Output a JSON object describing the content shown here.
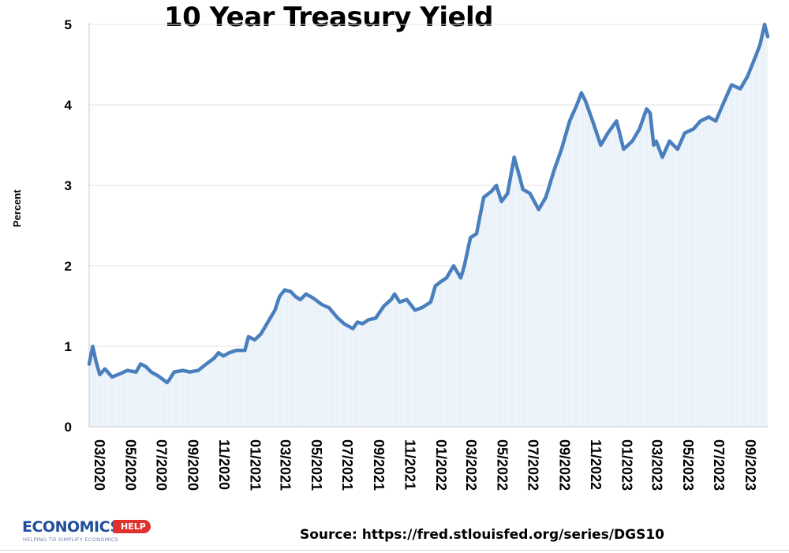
{
  "chart_data": {
    "type": "line",
    "title": "10 Year Treasury Yield",
    "ylabel": "Percent",
    "xlabel": "",
    "ylim": [
      0,
      5
    ],
    "yticks": [
      0,
      1,
      2,
      3,
      4,
      5
    ],
    "grid": "horizontal",
    "x_tick_labels": [
      "03/2020",
      "05/2020",
      "07/2020",
      "09/2020",
      "11/2020",
      "01/2021",
      "03/2021",
      "05/2021",
      "07/2021",
      "09/2021",
      "11/2021",
      "01/2022",
      "03/2022",
      "05/2022",
      "07/2022",
      "09/2022",
      "11/2022",
      "01/2023",
      "03/2023",
      "05/2023",
      "07/2023",
      "09/2023"
    ],
    "series": [
      {
        "color": "#4a7fbd",
        "x": [
          "2020-03-01",
          "2020-03-08",
          "2020-03-15",
          "2020-03-22",
          "2020-04-01",
          "2020-04-15",
          "2020-05-01",
          "2020-05-15",
          "2020-06-01",
          "2020-06-10",
          "2020-06-20",
          "2020-07-01",
          "2020-07-15",
          "2020-08-01",
          "2020-08-05",
          "2020-08-15",
          "2020-09-01",
          "2020-09-15",
          "2020-10-01",
          "2020-10-15",
          "2020-11-01",
          "2020-11-10",
          "2020-11-20",
          "2020-12-01",
          "2020-12-15",
          "2021-01-01",
          "2021-01-08",
          "2021-01-20",
          "2021-02-01",
          "2021-02-15",
          "2021-03-01",
          "2021-03-10",
          "2021-03-20",
          "2021-04-01",
          "2021-04-10",
          "2021-04-20",
          "2021-05-01",
          "2021-05-15",
          "2021-06-01",
          "2021-06-15",
          "2021-07-01",
          "2021-07-15",
          "2021-08-01",
          "2021-08-10",
          "2021-08-20",
          "2021-09-01",
          "2021-09-15",
          "2021-10-01",
          "2021-10-15",
          "2021-10-22",
          "2021-11-01",
          "2021-11-15",
          "2021-11-25",
          "2021-12-01",
          "2021-12-15",
          "2022-01-01",
          "2022-01-10",
          "2022-01-20",
          "2022-02-01",
          "2022-02-15",
          "2022-03-01",
          "2022-03-08",
          "2022-03-20",
          "2022-04-01",
          "2022-04-15",
          "2022-05-01",
          "2022-05-10",
          "2022-05-20",
          "2022-06-01",
          "2022-06-14",
          "2022-06-25",
          "2022-07-01",
          "2022-07-15",
          "2022-08-01",
          "2022-08-15",
          "2022-09-01",
          "2022-09-15",
          "2022-10-01",
          "2022-10-15",
          "2022-10-24",
          "2022-11-01",
          "2022-11-15",
          "2022-12-01",
          "2022-12-15",
          "2023-01-01",
          "2023-01-15",
          "2023-02-01",
          "2023-02-15",
          "2023-03-01",
          "2023-03-08",
          "2023-03-15",
          "2023-03-20",
          "2023-04-01",
          "2023-04-15",
          "2023-05-01",
          "2023-05-15",
          "2023-06-01",
          "2023-06-15",
          "2023-07-01",
          "2023-07-15",
          "2023-08-01",
          "2023-08-15",
          "2023-09-01",
          "2023-09-15",
          "2023-10-01",
          "2023-10-10",
          "2023-10-19",
          "2023-10-25"
        ],
        "y": [
          0.78,
          1.0,
          0.8,
          0.65,
          0.72,
          0.62,
          0.66,
          0.7,
          0.68,
          0.78,
          0.75,
          0.68,
          0.63,
          0.55,
          0.58,
          0.68,
          0.7,
          0.68,
          0.7,
          0.77,
          0.85,
          0.92,
          0.88,
          0.92,
          0.95,
          0.95,
          1.12,
          1.08,
          1.15,
          1.3,
          1.45,
          1.62,
          1.7,
          1.68,
          1.62,
          1.58,
          1.65,
          1.6,
          1.52,
          1.48,
          1.36,
          1.28,
          1.22,
          1.3,
          1.28,
          1.33,
          1.35,
          1.5,
          1.58,
          1.65,
          1.55,
          1.58,
          1.5,
          1.45,
          1.48,
          1.55,
          1.75,
          1.8,
          1.85,
          2.0,
          1.85,
          2.0,
          2.35,
          2.4,
          2.85,
          2.93,
          3.0,
          2.8,
          2.9,
          3.35,
          3.1,
          2.95,
          2.9,
          2.7,
          2.85,
          3.2,
          3.45,
          3.8,
          4.0,
          4.15,
          4.05,
          3.8,
          3.5,
          3.65,
          3.8,
          3.45,
          3.55,
          3.7,
          3.95,
          3.9,
          3.5,
          3.55,
          3.35,
          3.55,
          3.45,
          3.65,
          3.7,
          3.8,
          3.85,
          3.8,
          4.05,
          4.25,
          4.2,
          4.35,
          4.6,
          4.75,
          5.0,
          4.85
        ]
      }
    ]
  },
  "source_text": "Source: https://fred.stlouisfed.org/series/DGS10",
  "logo": {
    "brand": "ECONOMICS",
    "badge": "HELP",
    "tagline": "HELPING TO SIMPLIFY ECONOMICS"
  },
  "colors": {
    "line": "#4a7fbd",
    "fill": "#dbe7f4",
    "grid": "#e3e3e3"
  }
}
